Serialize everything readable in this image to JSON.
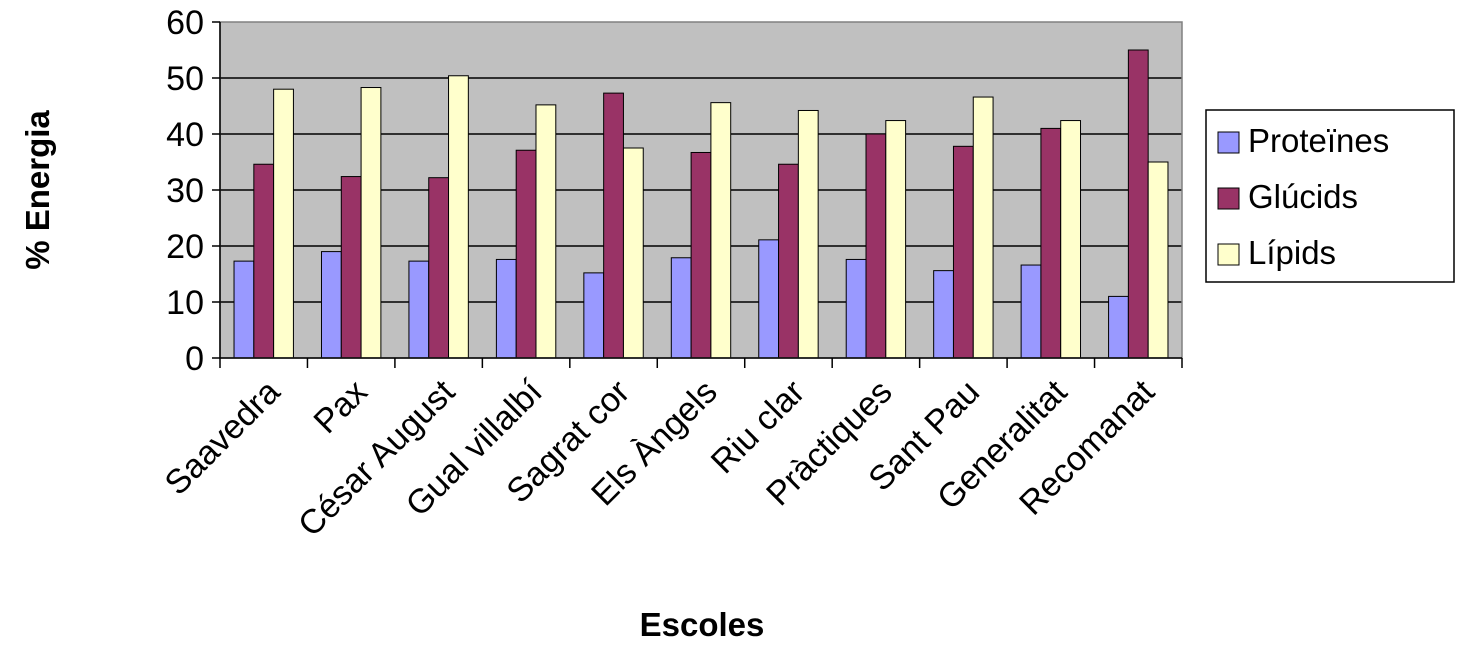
{
  "chart_data": {
    "type": "bar",
    "title": "",
    "xlabel": "Escoles",
    "ylabel": "% Energia",
    "ylim": [
      0,
      60
    ],
    "yticks": [
      0,
      10,
      20,
      30,
      40,
      50,
      60
    ],
    "grid": true,
    "legend_position": "right",
    "categories": [
      "Saavedra",
      "Pax",
      "César August",
      "Gual villalbí",
      "Sagrat cor",
      "Els Àngels",
      "Riu clar",
      "Pràctiques",
      "Sant Pau",
      "Generalitat",
      "Recomanat"
    ],
    "series": [
      {
        "name": "Proteïnes",
        "color": "#9999ff",
        "values": [
          17.3,
          19.0,
          17.3,
          17.6,
          15.2,
          17.9,
          21.1,
          17.6,
          15.6,
          16.6,
          11.0
        ]
      },
      {
        "name": "Glúcids",
        "color": "#993366",
        "values": [
          34.6,
          32.4,
          32.2,
          37.1,
          47.3,
          36.7,
          34.6,
          40.0,
          37.8,
          41.0,
          55.0
        ]
      },
      {
        "name": "Lípids",
        "color": "#ffffcc",
        "values": [
          48.0,
          48.3,
          50.4,
          45.2,
          37.5,
          45.6,
          44.2,
          42.4,
          46.6,
          42.4,
          35.0
        ]
      }
    ]
  }
}
